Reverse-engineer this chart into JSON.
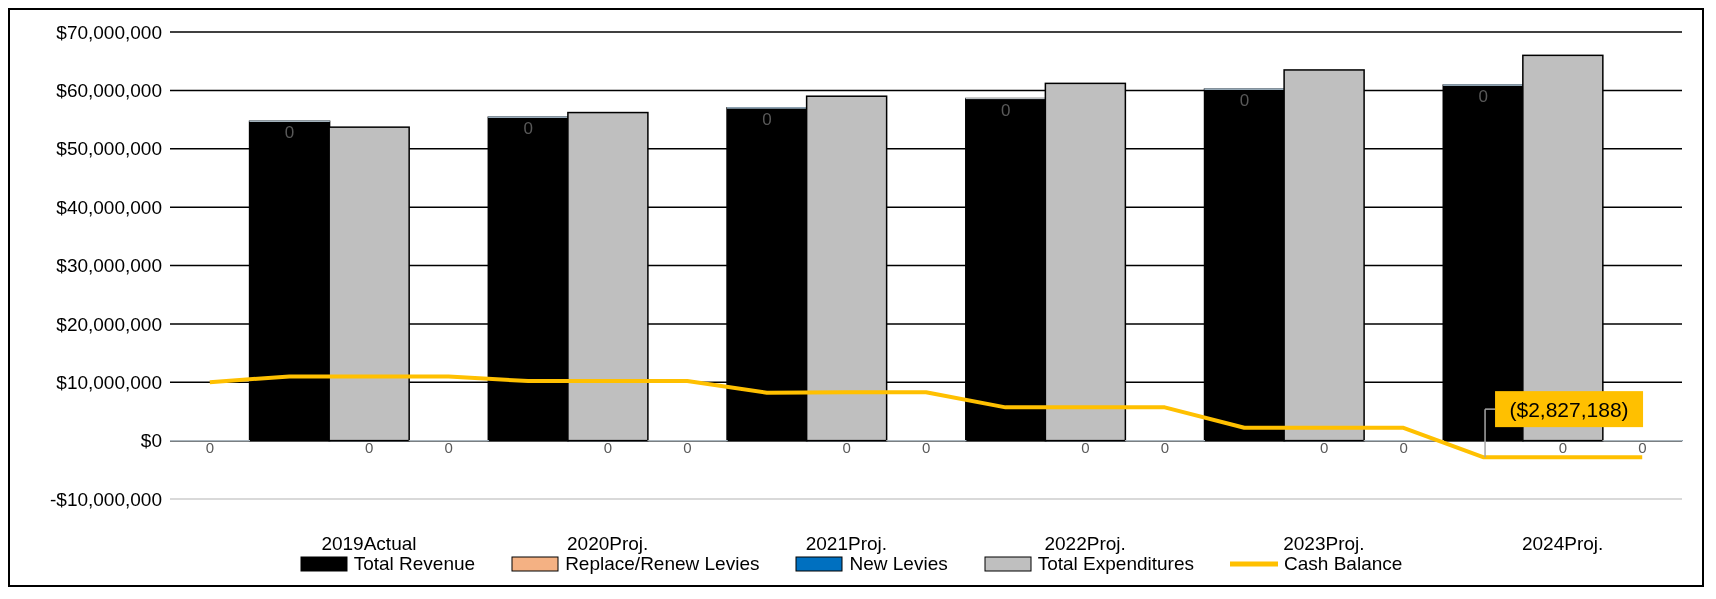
{
  "chart_data": {
    "type": "bar",
    "stacked": true,
    "categories": [
      null,
      null,
      "2019Actual",
      null,
      null,
      "2020Proj.",
      null,
      null,
      "2021Proj.",
      null,
      null,
      "2022Proj.",
      null,
      null,
      "2023Proj.",
      null,
      null,
      "2024Proj.",
      null
    ],
    "ylim": [
      -10000000,
      70000000
    ],
    "yticks": [
      {
        "value": -10000000,
        "label": "-$10,000,000"
      },
      {
        "value": 0,
        "label": "$0"
      },
      {
        "value": 10000000,
        "label": "$10,000,000"
      },
      {
        "value": 20000000,
        "label": "$20,000,000"
      },
      {
        "value": 30000000,
        "label": "$30,000,000"
      },
      {
        "value": 40000000,
        "label": "$40,000,000"
      },
      {
        "value": 50000000,
        "label": "$50,000,000"
      },
      {
        "value": 60000000,
        "label": "$60,000,000"
      },
      {
        "value": 70000000,
        "label": "$70,000,000"
      }
    ],
    "grid": "y",
    "legend": "bottom",
    "series": [
      {
        "name": "Total Revenue",
        "type": "bar",
        "color": "#000000",
        "values": [
          null,
          54700000,
          null,
          null,
          55400000,
          null,
          null,
          57000000,
          null,
          null,
          58600000,
          null,
          null,
          60200000,
          null,
          null,
          60900000,
          null,
          null
        ]
      },
      {
        "name": "Replace/Renew Levies",
        "type": "bar",
        "color": "#f4b183",
        "values": [
          null,
          0,
          null,
          null,
          0,
          null,
          null,
          0,
          null,
          null,
          0,
          null,
          null,
          0,
          null,
          null,
          0,
          null,
          null
        ],
        "value_labels": [
          null,
          "0",
          null,
          null,
          "0",
          null,
          null,
          "0",
          null,
          null,
          "0",
          null,
          null,
          "0",
          null,
          null,
          "0",
          null,
          null
        ]
      },
      {
        "name": "New Levies",
        "type": "bar",
        "color": "#0070c0",
        "values": [
          0,
          null,
          0,
          0,
          null,
          0,
          0,
          null,
          0,
          0,
          null,
          0,
          0,
          null,
          0,
          0,
          null,
          0,
          0
        ],
        "value_labels": [
          "0",
          null,
          "0",
          "0",
          null,
          "0",
          "0",
          null,
          "0",
          "0",
          null,
          "0",
          "0",
          null,
          "0",
          "0",
          null,
          "0",
          "0"
        ]
      },
      {
        "name": "Total Expenditures",
        "type": "bar",
        "color": "#bfbfbf",
        "values": [
          null,
          null,
          53700000,
          null,
          null,
          56200000,
          null,
          null,
          59000000,
          null,
          null,
          61200000,
          null,
          null,
          63500000,
          null,
          null,
          66000000,
          null
        ]
      },
      {
        "name": "Cash Balance",
        "type": "line",
        "color": "#ffc000",
        "values": [
          10000000,
          11000000,
          11000000,
          11000000,
          10200000,
          10200000,
          10200000,
          8200000,
          8300000,
          8300000,
          5700000,
          5700000,
          5700000,
          2200000,
          2200000,
          2200000,
          -2827188,
          -2827188,
          -2827188
        ],
        "value_labels": [
          null,
          null,
          null,
          null,
          null,
          null,
          null,
          null,
          null,
          null,
          null,
          null,
          null,
          null,
          null,
          null,
          "($2,827,188)",
          null,
          null
        ]
      }
    ]
  }
}
